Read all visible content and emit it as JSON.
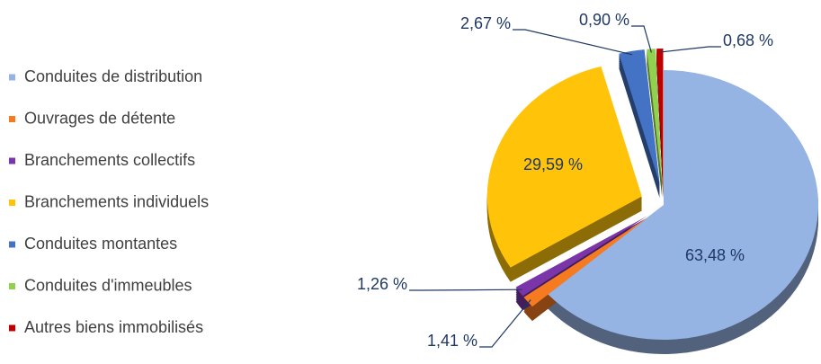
{
  "chart_data": {
    "type": "pie",
    "categories": [
      "Conduites de distribution",
      "Ouvrages de détente",
      "Branchements collectifs",
      "Branchements individuels",
      "Conduites montantes",
      "Conduites d'immeubles",
      "Autres biens immobilisés"
    ],
    "values": [
      63.48,
      1.41,
      1.26,
      29.59,
      2.67,
      0.9,
      0.68
    ],
    "value_labels": [
      "63,48 %",
      "1,41 %",
      "1,26 %",
      "29,59 %",
      "2,67 %",
      "0,90 %",
      "0,68 %"
    ],
    "colors": [
      "#95b3e3",
      "#f57a20",
      "#7a35a8",
      "#ffc40a",
      "#4472c4",
      "#92d050",
      "#c00000"
    ],
    "legend": "left"
  }
}
